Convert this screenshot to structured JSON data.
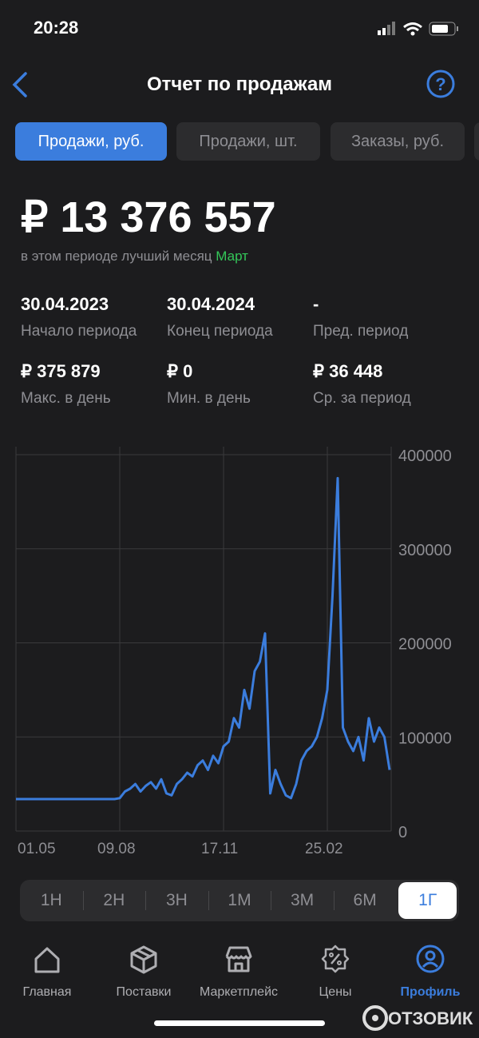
{
  "status_bar": {
    "time": "20:28"
  },
  "header": {
    "title": "Отчет по продажам"
  },
  "tabs": [
    "Продажи, руб.",
    "Продажи, шт.",
    "Заказы, руб."
  ],
  "active_tab": 0,
  "summary": {
    "total": "₽ 13 376 557",
    "note": "в этом периоде лучший месяц",
    "best_month": "Март"
  },
  "stats": [
    {
      "value": "30.04.2023",
      "label": "Начало периода"
    },
    {
      "value": "30.04.2024",
      "label": "Конец периода"
    },
    {
      "value": "-",
      "label": "Пред. период"
    },
    {
      "value": "₽ 375 879",
      "label": "Макс. в день"
    },
    {
      "value": "₽ 0",
      "label": "Мин. в день"
    },
    {
      "value": "₽ 36 448",
      "label": "Ср. за период"
    }
  ],
  "chart_data": {
    "type": "line",
    "categories": [
      "01.05",
      null,
      null,
      null,
      null,
      null,
      null,
      null,
      null,
      null,
      null,
      null,
      null,
      null,
      null,
      null,
      null,
      null,
      null,
      null,
      "09.08",
      null,
      null,
      null,
      null,
      null,
      null,
      null,
      null,
      null,
      null,
      null,
      null,
      null,
      null,
      null,
      null,
      null,
      null,
      null,
      "17.11",
      null,
      null,
      null,
      null,
      null,
      null,
      null,
      null,
      null,
      null,
      null,
      null,
      null,
      null,
      null,
      null,
      null,
      null,
      null,
      "25.02",
      null,
      null,
      null,
      null,
      null,
      null,
      null,
      null,
      null,
      null,
      null,
      null
    ],
    "series": [
      {
        "color": "#3b7ddd",
        "values": [
          34000,
          34000,
          34000,
          34000,
          34000,
          34000,
          34000,
          34000,
          34000,
          34000,
          34000,
          34000,
          34000,
          34000,
          34000,
          34000,
          34000,
          34000,
          34000,
          34000,
          35000,
          42000,
          45000,
          50000,
          42000,
          48000,
          52000,
          45000,
          55000,
          40000,
          38000,
          50000,
          55000,
          62000,
          58000,
          70000,
          75000,
          65000,
          80000,
          72000,
          90000,
          95000,
          120000,
          110000,
          150000,
          130000,
          170000,
          180000,
          210000,
          40000,
          65000,
          50000,
          38000,
          35000,
          50000,
          75000,
          85000,
          90000,
          100000,
          120000,
          150000,
          250000,
          375000,
          110000,
          95000,
          85000,
          100000,
          75000,
          120000,
          95000,
          110000,
          100000,
          65000
        ]
      }
    ],
    "ylim": [
      0,
      400000
    ],
    "yticks": [
      0,
      100000,
      200000,
      300000,
      400000
    ],
    "grid": true
  },
  "periods": [
    "1Н",
    "2Н",
    "3Н",
    "1М",
    "3М",
    "6М",
    "1Г"
  ],
  "active_period": 6,
  "nav": [
    "Главная",
    "Поставки",
    "Маркетплейс",
    "Цены",
    "Профиль"
  ],
  "active_nav": 4,
  "watermark": "ОТЗОВИК"
}
